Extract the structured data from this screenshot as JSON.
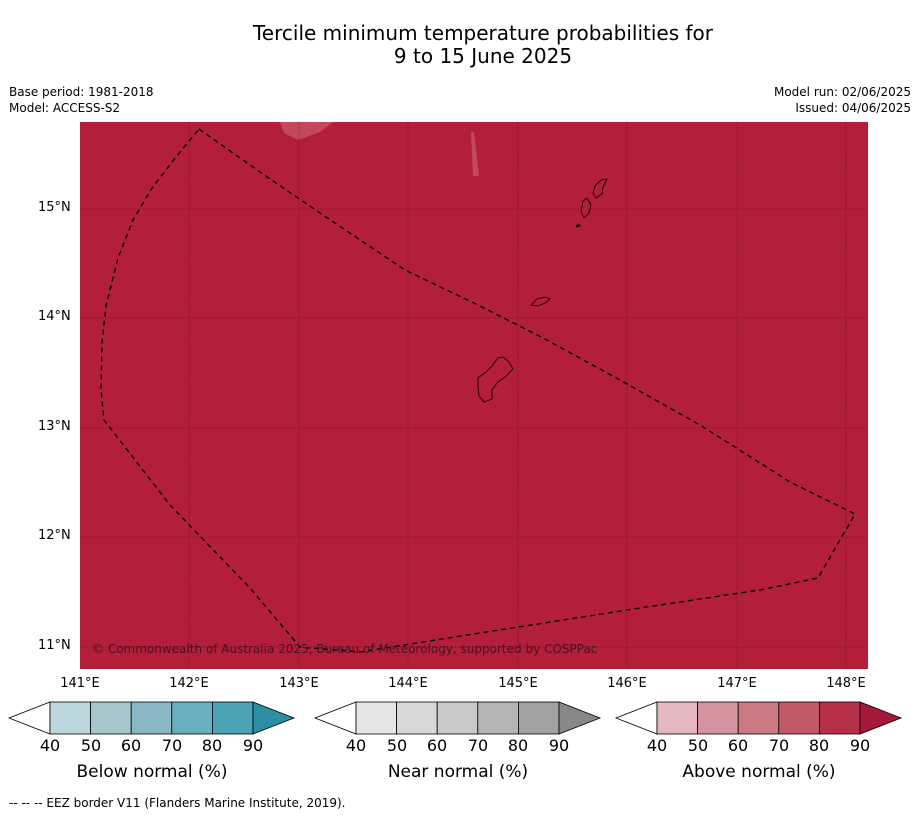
{
  "title_line1": "Tercile minimum temperature probabilities for",
  "title_line2": "9 to 15 June 2025",
  "base_period": "Base period: 1981-2018",
  "model": "Model: ACCESS-S2",
  "model_run": "Model run: 02/06/2025",
  "issued": "Issued: 04/06/2025",
  "copyright": "© Commonwealth of Australia 2025, Bureau of Meteorology, supported by COSPPac",
  "lat_labels": [
    "15°N",
    "14°N",
    "13°N",
    "12°N",
    "11°N"
  ],
  "lon_labels": [
    "141°E",
    "142°E",
    "143°E",
    "144°E",
    "145°E",
    "146°E",
    "147°E",
    "148°E"
  ],
  "map_fill_color": "#b31e3a",
  "colorbars": [
    {
      "title": "Below normal (%)",
      "ticks": [
        "40",
        "50",
        "60",
        "70",
        "80",
        "90"
      ],
      "colors": [
        "#ffffff",
        "#bcd6dd",
        "#a7c6cc",
        "#8ab7c4",
        "#6aafbf",
        "#4ba2b4",
        "#2d8fa4"
      ]
    },
    {
      "title": "Near normal (%)",
      "ticks": [
        "40",
        "50",
        "60",
        "70",
        "80",
        "90"
      ],
      "colors": [
        "#ffffff",
        "#e5e5e5",
        "#d8d8d8",
        "#c9c9c9",
        "#b5b5b5",
        "#a1a1a1",
        "#888888"
      ]
    },
    {
      "title": "Above normal (%)",
      "ticks": [
        "40",
        "50",
        "60",
        "70",
        "80",
        "90"
      ],
      "colors": [
        "#ffffff",
        "#e3b7bd",
        "#d5949d",
        "#cb7982",
        "#c35968",
        "#b6304a",
        "#a51838"
      ]
    }
  ],
  "footnote": "--  --  -- EEZ border V11 (Flanders Marine Institute, 2019)."
}
